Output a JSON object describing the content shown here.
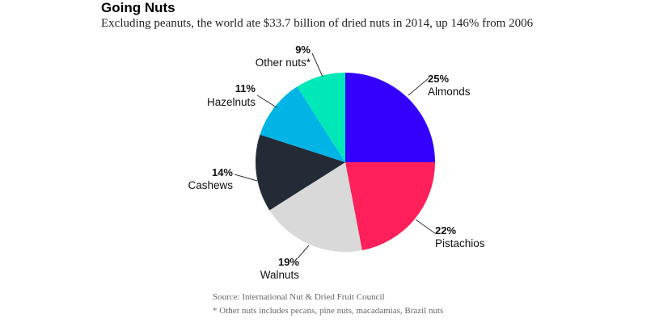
{
  "title": "Going Nuts",
  "subtitle": "Excluding peanuts, the world ate $33.7 billion of dried nuts in 2014, up 146% from 2006",
  "source": "Source: International Nut & Dried Fruit Council",
  "footnote": "* Other nuts includes pecans, pine nuts, macadamias, Brazil nuts",
  "chart_data": {
    "type": "pie",
    "title": "Going Nuts",
    "slices": [
      {
        "label": "Almonds",
        "pct_label": "25%",
        "value": 25,
        "color": "#3300ff"
      },
      {
        "label": "Pistachios",
        "pct_label": "22%",
        "value": 22,
        "color": "#ff1f5a"
      },
      {
        "label": "Walnuts",
        "pct_label": "19%",
        "value": 19,
        "color": "#d9d9d9"
      },
      {
        "label": "Cashews",
        "pct_label": "14%",
        "value": 14,
        "color": "#232b36"
      },
      {
        "label": "Hazelnuts",
        "pct_label": "11%",
        "value": 11,
        "color": "#00b4e6"
      },
      {
        "label": "Other nuts*",
        "pct_label": "9%",
        "value": 9,
        "color": "#00e8b8"
      }
    ]
  }
}
